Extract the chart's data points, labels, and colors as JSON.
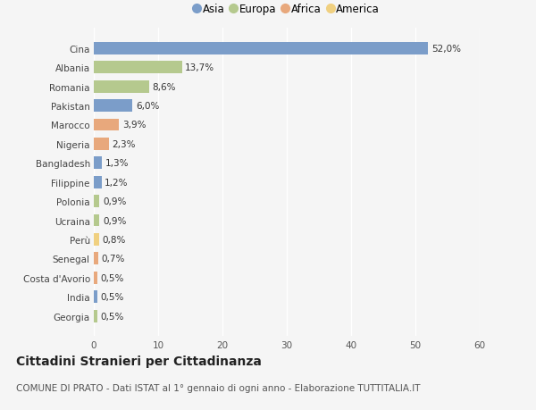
{
  "categories": [
    "Cina",
    "Albania",
    "Romania",
    "Pakistan",
    "Marocco",
    "Nigeria",
    "Bangladesh",
    "Filippine",
    "Polonia",
    "Ucraina",
    "Perù",
    "Senegal",
    "Costa d'Avorio",
    "India",
    "Georgia"
  ],
  "values": [
    52.0,
    13.7,
    8.6,
    6.0,
    3.9,
    2.3,
    1.3,
    1.2,
    0.9,
    0.9,
    0.8,
    0.7,
    0.5,
    0.5,
    0.5
  ],
  "labels": [
    "52,0%",
    "13,7%",
    "8,6%",
    "6,0%",
    "3,9%",
    "2,3%",
    "1,3%",
    "1,2%",
    "0,9%",
    "0,9%",
    "0,8%",
    "0,7%",
    "0,5%",
    "0,5%",
    "0,5%"
  ],
  "continents": [
    "Asia",
    "Europa",
    "Europa",
    "Asia",
    "Africa",
    "Africa",
    "Asia",
    "Asia",
    "Europa",
    "Europa",
    "America",
    "Africa",
    "Africa",
    "Asia",
    "Europa"
  ],
  "continent_colors": {
    "Asia": "#7b9dc9",
    "Europa": "#b5c98e",
    "Africa": "#e8a87c",
    "America": "#f0d080"
  },
  "legend_order": [
    "Asia",
    "Europa",
    "Africa",
    "America"
  ],
  "xlim": [
    0,
    60
  ],
  "xticks": [
    0,
    10,
    20,
    30,
    40,
    50,
    60
  ],
  "title": "Cittadini Stranieri per Cittadinanza",
  "subtitle": "COMUNE DI PRATO - Dati ISTAT al 1° gennaio di ogni anno - Elaborazione TUTTITALIA.IT",
  "background_color": "#f5f5f5",
  "bar_height": 0.65,
  "label_fontsize": 7.5,
  "tick_fontsize": 7.5,
  "title_fontsize": 10,
  "subtitle_fontsize": 7.5
}
